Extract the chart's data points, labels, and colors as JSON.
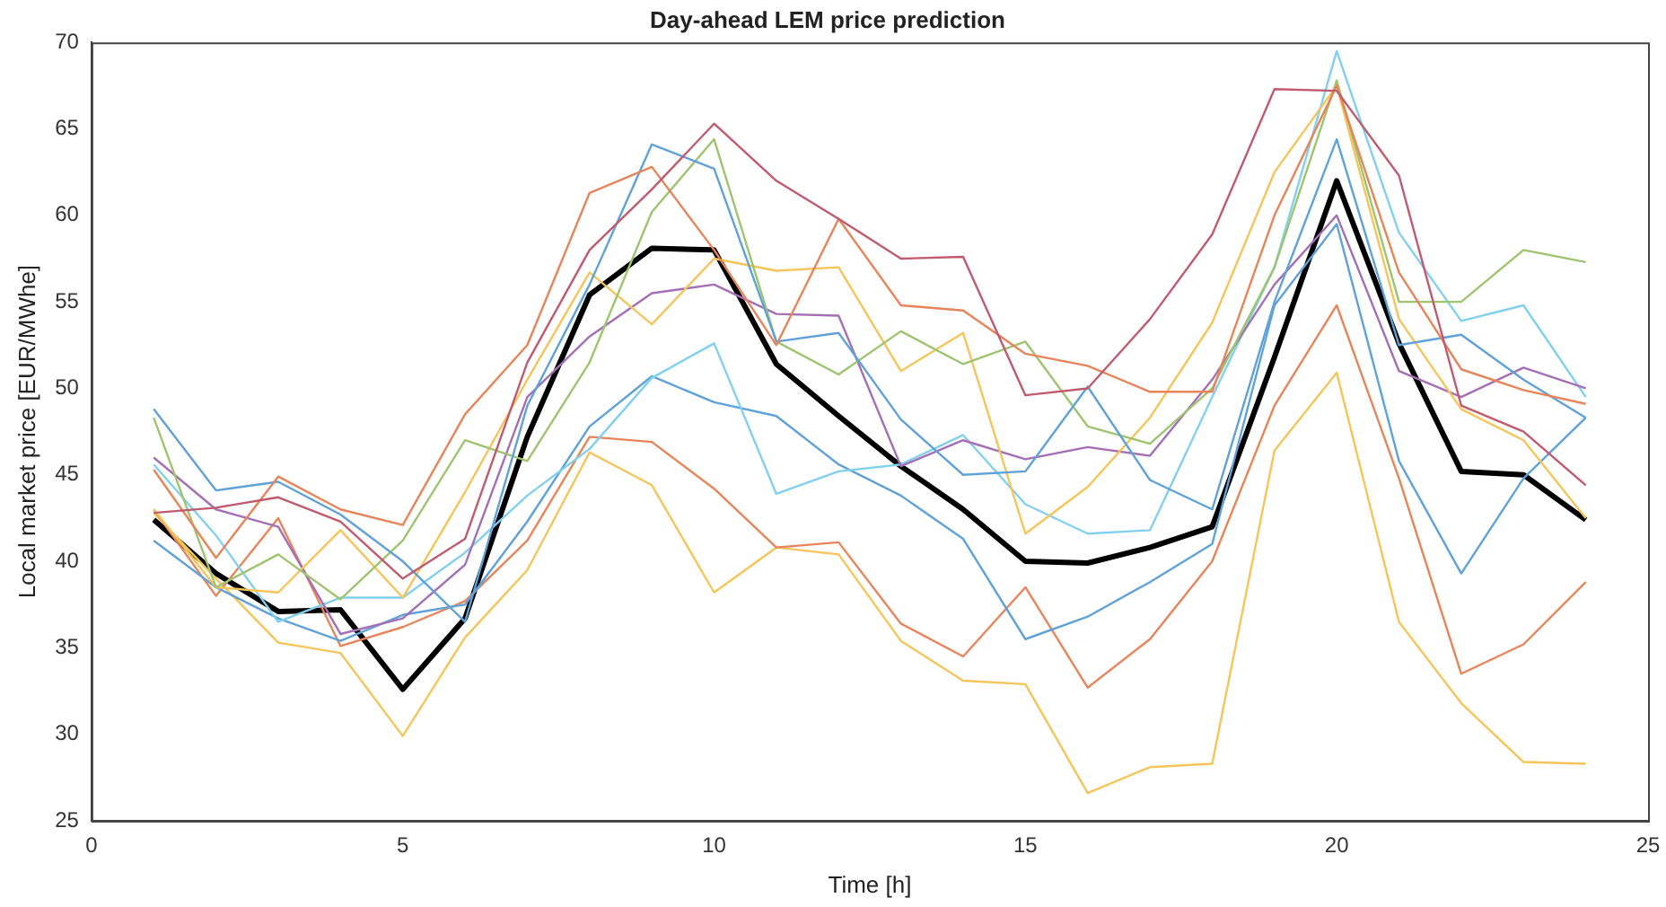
{
  "chart_data": {
    "type": "line",
    "title": "Day-ahead LEM price prediction",
    "xlabel": "Time [h]",
    "ylabel": "Local market price [EUR/MWhe]",
    "x": [
      1,
      2,
      3,
      4,
      5,
      6,
      7,
      8,
      9,
      10,
      11,
      12,
      13,
      14,
      15,
      16,
      17,
      18,
      19,
      20,
      21,
      22,
      23,
      24
    ],
    "xlim": [
      0,
      25
    ],
    "xticks": [
      0,
      5,
      10,
      15,
      20,
      25
    ],
    "ylim": [
      25,
      70
    ],
    "yticks": [
      25,
      30,
      35,
      40,
      45,
      50,
      55,
      60,
      65,
      70
    ],
    "grid": false,
    "legend": false,
    "marker": "none",
    "line_style": "solid",
    "series": [
      {
        "color": "#c05a6e",
        "values": [
          42.8,
          43.1,
          43.7,
          42.3,
          39.0,
          41.3,
          51.5,
          58.0,
          61.5,
          65.3,
          62.0,
          59.8,
          57.5,
          57.6,
          49.6,
          50.0,
          54.0,
          58.9,
          67.3,
          67.2,
          62.3,
          49.0,
          47.5,
          44.4
        ]
      },
      {
        "color": "#e8845a",
        "values": [
          45.3,
          40.2,
          44.9,
          43.0,
          42.1,
          48.5,
          52.5,
          61.3,
          62.8,
          58.0,
          52.5,
          59.8,
          54.8,
          54.5,
          52.0,
          51.3,
          49.8,
          49.8,
          60.0,
          67.5,
          56.7,
          51.1,
          49.9,
          49.1
        ]
      },
      {
        "color": "#5fa2d8",
        "values": [
          48.8,
          44.1,
          44.6,
          42.7,
          40.0,
          36.5,
          49.0,
          56.0,
          64.1,
          62.7,
          52.7,
          53.2,
          48.2,
          45.0,
          45.2,
          50.1,
          44.7,
          43.0,
          55.0,
          64.4,
          52.5,
          53.1,
          50.5,
          48.3
        ]
      },
      {
        "color": "#9ec46f",
        "values": [
          48.3,
          38.5,
          40.4,
          37.8,
          41.2,
          47.0,
          45.8,
          51.5,
          60.2,
          64.4,
          52.7,
          50.8,
          53.3,
          51.4,
          52.7,
          47.8,
          46.8,
          50.0,
          57.0,
          67.8,
          55.0,
          55.0,
          58.0,
          57.3
        ]
      },
      {
        "color": "#f5c55a",
        "values": [
          43.0,
          38.5,
          38.2,
          41.8,
          37.9,
          44.0,
          50.5,
          56.7,
          53.7,
          57.5,
          56.8,
          57.0,
          51.0,
          53.2,
          41.6,
          44.3,
          48.3,
          53.8,
          62.5,
          67.5,
          54.0,
          48.8,
          47.0,
          42.5
        ]
      },
      {
        "color": "#a46fb4",
        "values": [
          46.0,
          43.0,
          42.0,
          35.8,
          36.7,
          39.8,
          49.5,
          53.0,
          55.5,
          56.0,
          54.3,
          54.2,
          45.5,
          47.0,
          45.9,
          46.6,
          46.1,
          50.5,
          56.0,
          60.0,
          51.0,
          49.5,
          51.2,
          50.0
        ]
      },
      {
        "color": "#82d0f0",
        "values": [
          45.6,
          41.5,
          36.5,
          37.9,
          37.9,
          40.5,
          43.8,
          46.5,
          50.6,
          52.6,
          43.9,
          45.2,
          45.6,
          47.3,
          43.3,
          41.6,
          41.8,
          49.5,
          57.0,
          69.5,
          59.0,
          53.9,
          54.8,
          49.5
        ]
      },
      {
        "color": "#5fa2d8",
        "values": [
          41.2,
          38.5,
          36.7,
          35.4,
          36.9,
          37.5,
          42.3,
          47.8,
          50.7,
          49.2,
          48.4,
          45.6,
          43.8,
          41.3,
          35.5,
          36.8,
          38.8,
          41.0,
          54.8,
          59.5,
          45.8,
          39.3,
          44.8,
          48.3
        ]
      },
      {
        "color": "#e8845a",
        "values": [
          43.0,
          38.0,
          42.5,
          35.1,
          36.2,
          37.7,
          41.2,
          47.2,
          46.9,
          44.2,
          40.8,
          41.1,
          36.4,
          34.5,
          38.5,
          32.7,
          35.5,
          40.0,
          49.0,
          54.8,
          44.8,
          33.5,
          35.2,
          38.8
        ]
      },
      {
        "color": "#f5c55a",
        "values": [
          42.8,
          39.0,
          35.3,
          34.7,
          29.9,
          35.6,
          39.5,
          46.3,
          44.4,
          38.2,
          40.8,
          40.4,
          35.4,
          33.1,
          32.9,
          26.6,
          28.1,
          28.3,
          46.4,
          50.9,
          36.5,
          31.8,
          28.4,
          28.3
        ]
      },
      {
        "color": "#000000",
        "values": [
          42.4,
          39.3,
          37.1,
          37.2,
          32.6,
          36.7,
          47.2,
          55.4,
          58.1,
          58.0,
          51.4,
          48.4,
          45.5,
          43.0,
          40.0,
          39.9,
          40.8,
          42.0,
          51.8,
          62.0,
          52.6,
          45.2,
          45.0,
          42.4
        ]
      }
    ]
  }
}
